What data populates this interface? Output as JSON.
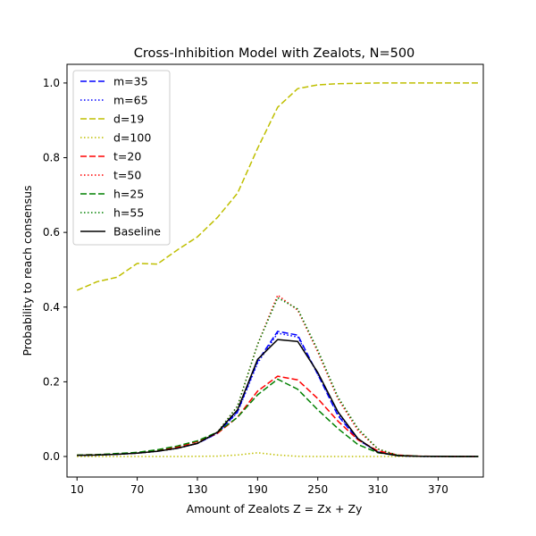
{
  "chart_data": {
    "type": "line",
    "title": "Cross-Inhibition Model with Zealots, N=500",
    "xlabel": "Amount of Zealots Z = Zx + Zy",
    "ylabel": "Probability to reach consensus",
    "xlim": [
      0,
      415
    ],
    "ylim": [
      -0.055,
      1.05
    ],
    "xticks": [
      10,
      70,
      130,
      190,
      250,
      310,
      370
    ],
    "yticks": [
      0.0,
      0.2,
      0.4,
      0.6,
      0.8,
      1.0
    ],
    "ytick_labels": [
      "0.0",
      "0.2",
      "0.4",
      "0.6",
      "0.8",
      "1.0"
    ],
    "grid": false,
    "legend_position": "upper-left",
    "x": [
      10,
      30,
      50,
      70,
      90,
      110,
      130,
      150,
      170,
      190,
      210,
      230,
      250,
      270,
      290,
      310,
      330,
      350,
      370,
      390,
      410
    ],
    "series": [
      {
        "name": "m=35",
        "color": "#0000ff",
        "dash": "dashed",
        "values": [
          0.003,
          0.004,
          0.006,
          0.009,
          0.014,
          0.022,
          0.035,
          0.062,
          0.12,
          0.255,
          0.335,
          0.325,
          0.22,
          0.11,
          0.045,
          0.012,
          0.002,
          0.0005,
          0.0002,
          0.0001,
          0.0
        ]
      },
      {
        "name": "m=65",
        "color": "#0000ff",
        "dash": "dotted",
        "values": [
          0.003,
          0.004,
          0.006,
          0.009,
          0.014,
          0.022,
          0.035,
          0.062,
          0.118,
          0.25,
          0.33,
          0.32,
          0.22,
          0.115,
          0.045,
          0.012,
          0.002,
          0.0005,
          0.0002,
          0.0001,
          0.0
        ]
      },
      {
        "name": "d=19",
        "color": "#bfbf00",
        "dash": "dashed",
        "values": [
          0.445,
          0.468,
          0.48,
          0.517,
          0.515,
          0.553,
          0.588,
          0.64,
          0.705,
          0.825,
          0.935,
          0.985,
          0.995,
          0.998,
          0.999,
          1.0,
          1.0,
          1.0,
          1.0,
          1.0,
          1.0
        ]
      },
      {
        "name": "d=100",
        "color": "#bfbf00",
        "dash": "dotted",
        "values": [
          0.0,
          0.0,
          0.0,
          0.0,
          0.0,
          0.0,
          0.0005,
          0.001,
          0.004,
          0.01,
          0.004,
          0.0005,
          0.0,
          0.0,
          0.0,
          0.0,
          0.0,
          0.0,
          0.0,
          0.0,
          0.0
        ]
      },
      {
        "name": "t=20",
        "color": "#ff0000",
        "dash": "dashed",
        "values": [
          0.004,
          0.005,
          0.007,
          0.01,
          0.016,
          0.025,
          0.04,
          0.062,
          0.105,
          0.175,
          0.215,
          0.205,
          0.155,
          0.095,
          0.045,
          0.015,
          0.004,
          0.001,
          0.0003,
          0.0001,
          0.0
        ]
      },
      {
        "name": "t=50",
        "color": "#ff0000",
        "dash": "dotted",
        "values": [
          0.003,
          0.004,
          0.006,
          0.009,
          0.014,
          0.022,
          0.035,
          0.065,
          0.135,
          0.3,
          0.432,
          0.392,
          0.28,
          0.155,
          0.07,
          0.02,
          0.003,
          0.0005,
          0.0002,
          0.0001,
          0.0
        ]
      },
      {
        "name": "h=25",
        "color": "#008000",
        "dash": "dashed",
        "values": [
          0.004,
          0.005,
          0.008,
          0.011,
          0.018,
          0.028,
          0.042,
          0.065,
          0.105,
          0.165,
          0.207,
          0.18,
          0.125,
          0.075,
          0.032,
          0.01,
          0.003,
          0.0008,
          0.0002,
          0.0001,
          0.0
        ]
      },
      {
        "name": "h=55",
        "color": "#008000",
        "dash": "dotted",
        "values": [
          0.003,
          0.004,
          0.006,
          0.009,
          0.014,
          0.022,
          0.036,
          0.065,
          0.135,
          0.3,
          0.425,
          0.395,
          0.285,
          0.16,
          0.075,
          0.02,
          0.003,
          0.0005,
          0.0002,
          0.0001,
          0.0
        ]
      },
      {
        "name": "Baseline",
        "color": "#000000",
        "dash": "solid",
        "values": [
          0.003,
          0.004,
          0.006,
          0.009,
          0.014,
          0.022,
          0.035,
          0.065,
          0.125,
          0.26,
          0.313,
          0.308,
          0.225,
          0.12,
          0.048,
          0.011,
          0.002,
          0.0005,
          0.0002,
          0.0001,
          0.0
        ]
      }
    ]
  }
}
